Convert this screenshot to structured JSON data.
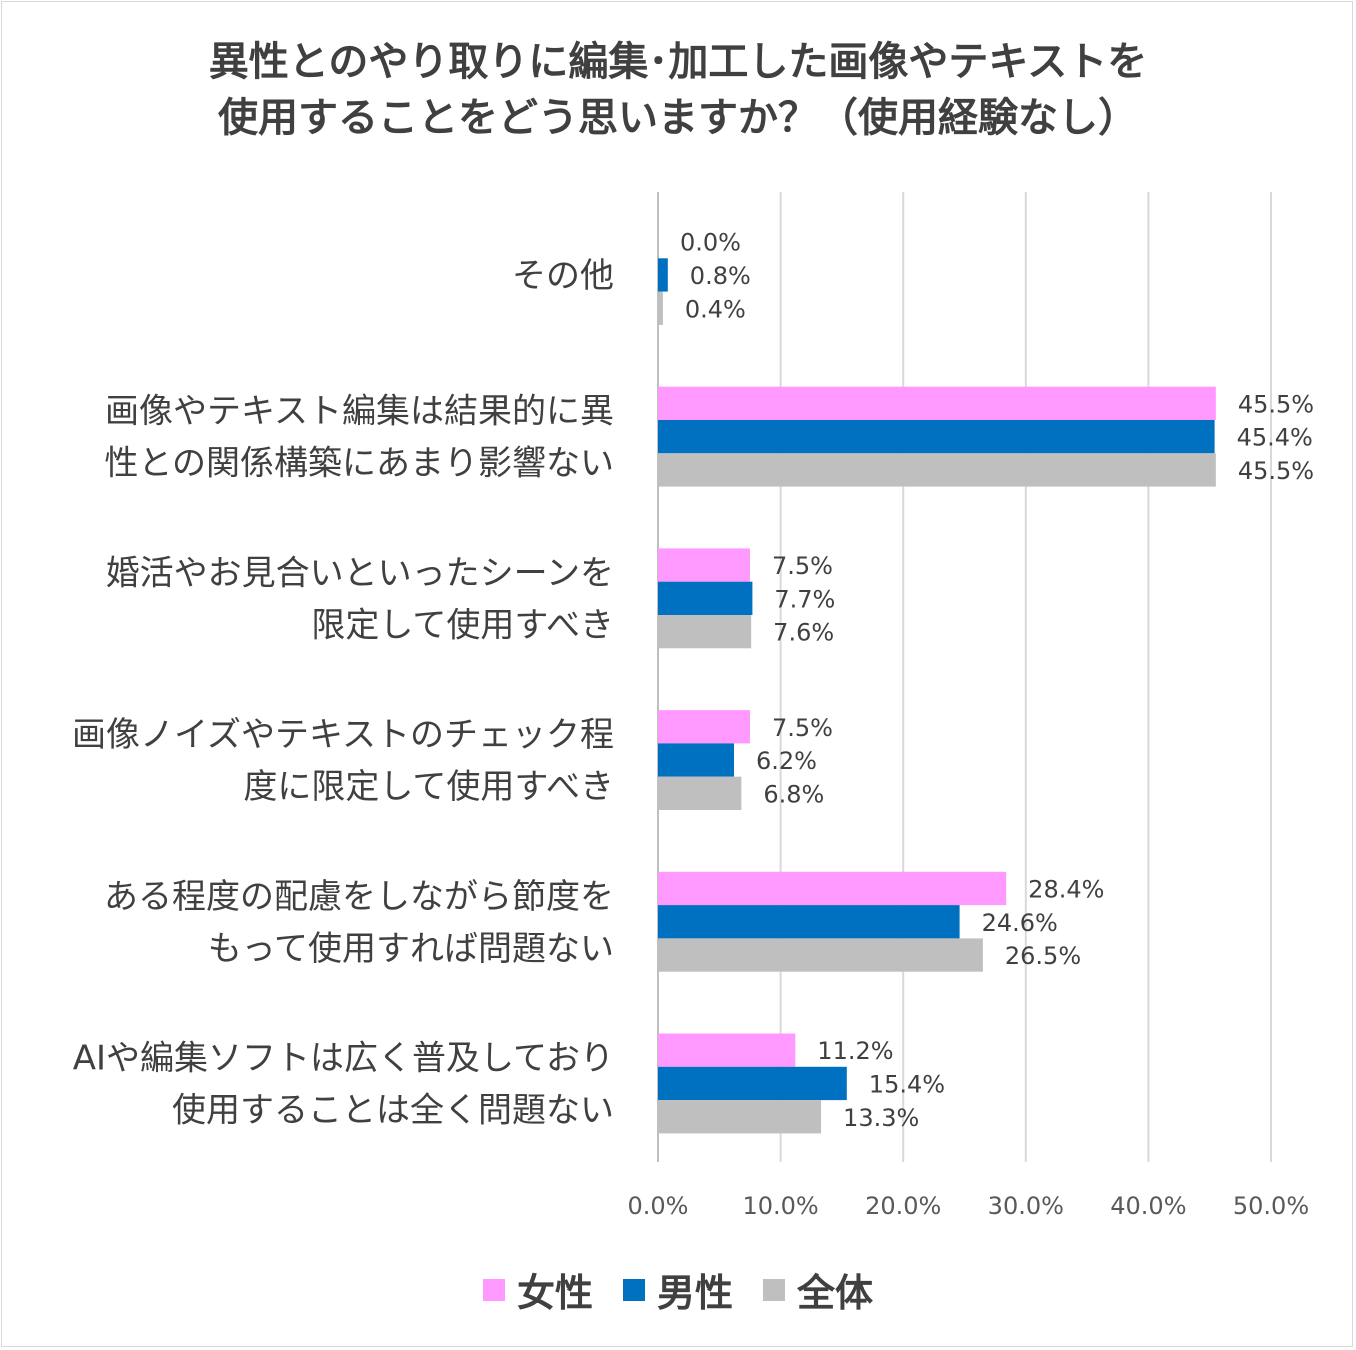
{
  "title": {
    "line1": "異性とのやり取りに編集･加工した画像やテキストを",
    "line2": "使用することをどう思いますか？（使用経験なし）"
  },
  "colors": {
    "female": "#FF99FF",
    "male": "#0070C0",
    "all": "#BFBFBF",
    "grid": "#D9D9D9"
  },
  "chart_data": {
    "type": "bar",
    "orientation": "horizontal",
    "categories": [
      [
        "その他"
      ],
      [
        "画像やテキスト編集は結果的に異",
        "性との関係構築にあまり影響ない"
      ],
      [
        "婚活やお見合いといったシーンを",
        "限定して使用すべき"
      ],
      [
        "画像ノイズやテキストのチェック程",
        "度に限定して使用すべき"
      ],
      [
        "ある程度の配慮をしながら節度を",
        "もって使用すれば問題ない"
      ],
      [
        "AIや編集ソフトは広く普及しており",
        "使用することは全く問題ない"
      ]
    ],
    "series": [
      {
        "name": "女性",
        "color": "#FF99FF",
        "values": [
          0.0,
          45.5,
          7.5,
          7.5,
          28.4,
          11.2
        ],
        "labels": [
          "0.0%",
          "45.5%",
          "7.5%",
          "7.5%",
          "28.4%",
          "11.2%"
        ]
      },
      {
        "name": "男性",
        "color": "#0070C0",
        "values": [
          0.8,
          45.4,
          7.7,
          6.2,
          24.6,
          15.4
        ],
        "labels": [
          "0.8%",
          "45.4%",
          "7.7%",
          "6.2%",
          "24.6%",
          "15.4%"
        ]
      },
      {
        "name": "全体",
        "color": "#BFBFBF",
        "values": [
          0.4,
          45.5,
          7.6,
          6.8,
          26.5,
          13.3
        ],
        "labels": [
          "0.4%",
          "45.5%",
          "7.6%",
          "6.8%",
          "26.5%",
          "13.3%"
        ]
      }
    ],
    "xlim": [
      0,
      50
    ],
    "xticks": [
      0,
      10,
      20,
      30,
      40,
      50
    ],
    "xtick_labels": [
      "0.0%",
      "10.0%",
      "20.0%",
      "30.0%",
      "40.0%",
      "50.0%"
    ],
    "grid": true,
    "legend_position": "bottom"
  },
  "legend": [
    {
      "label": "女性",
      "color": "#FF99FF"
    },
    {
      "label": "男性",
      "color": "#0070C0"
    },
    {
      "label": "全体",
      "color": "#BFBFBF"
    }
  ]
}
